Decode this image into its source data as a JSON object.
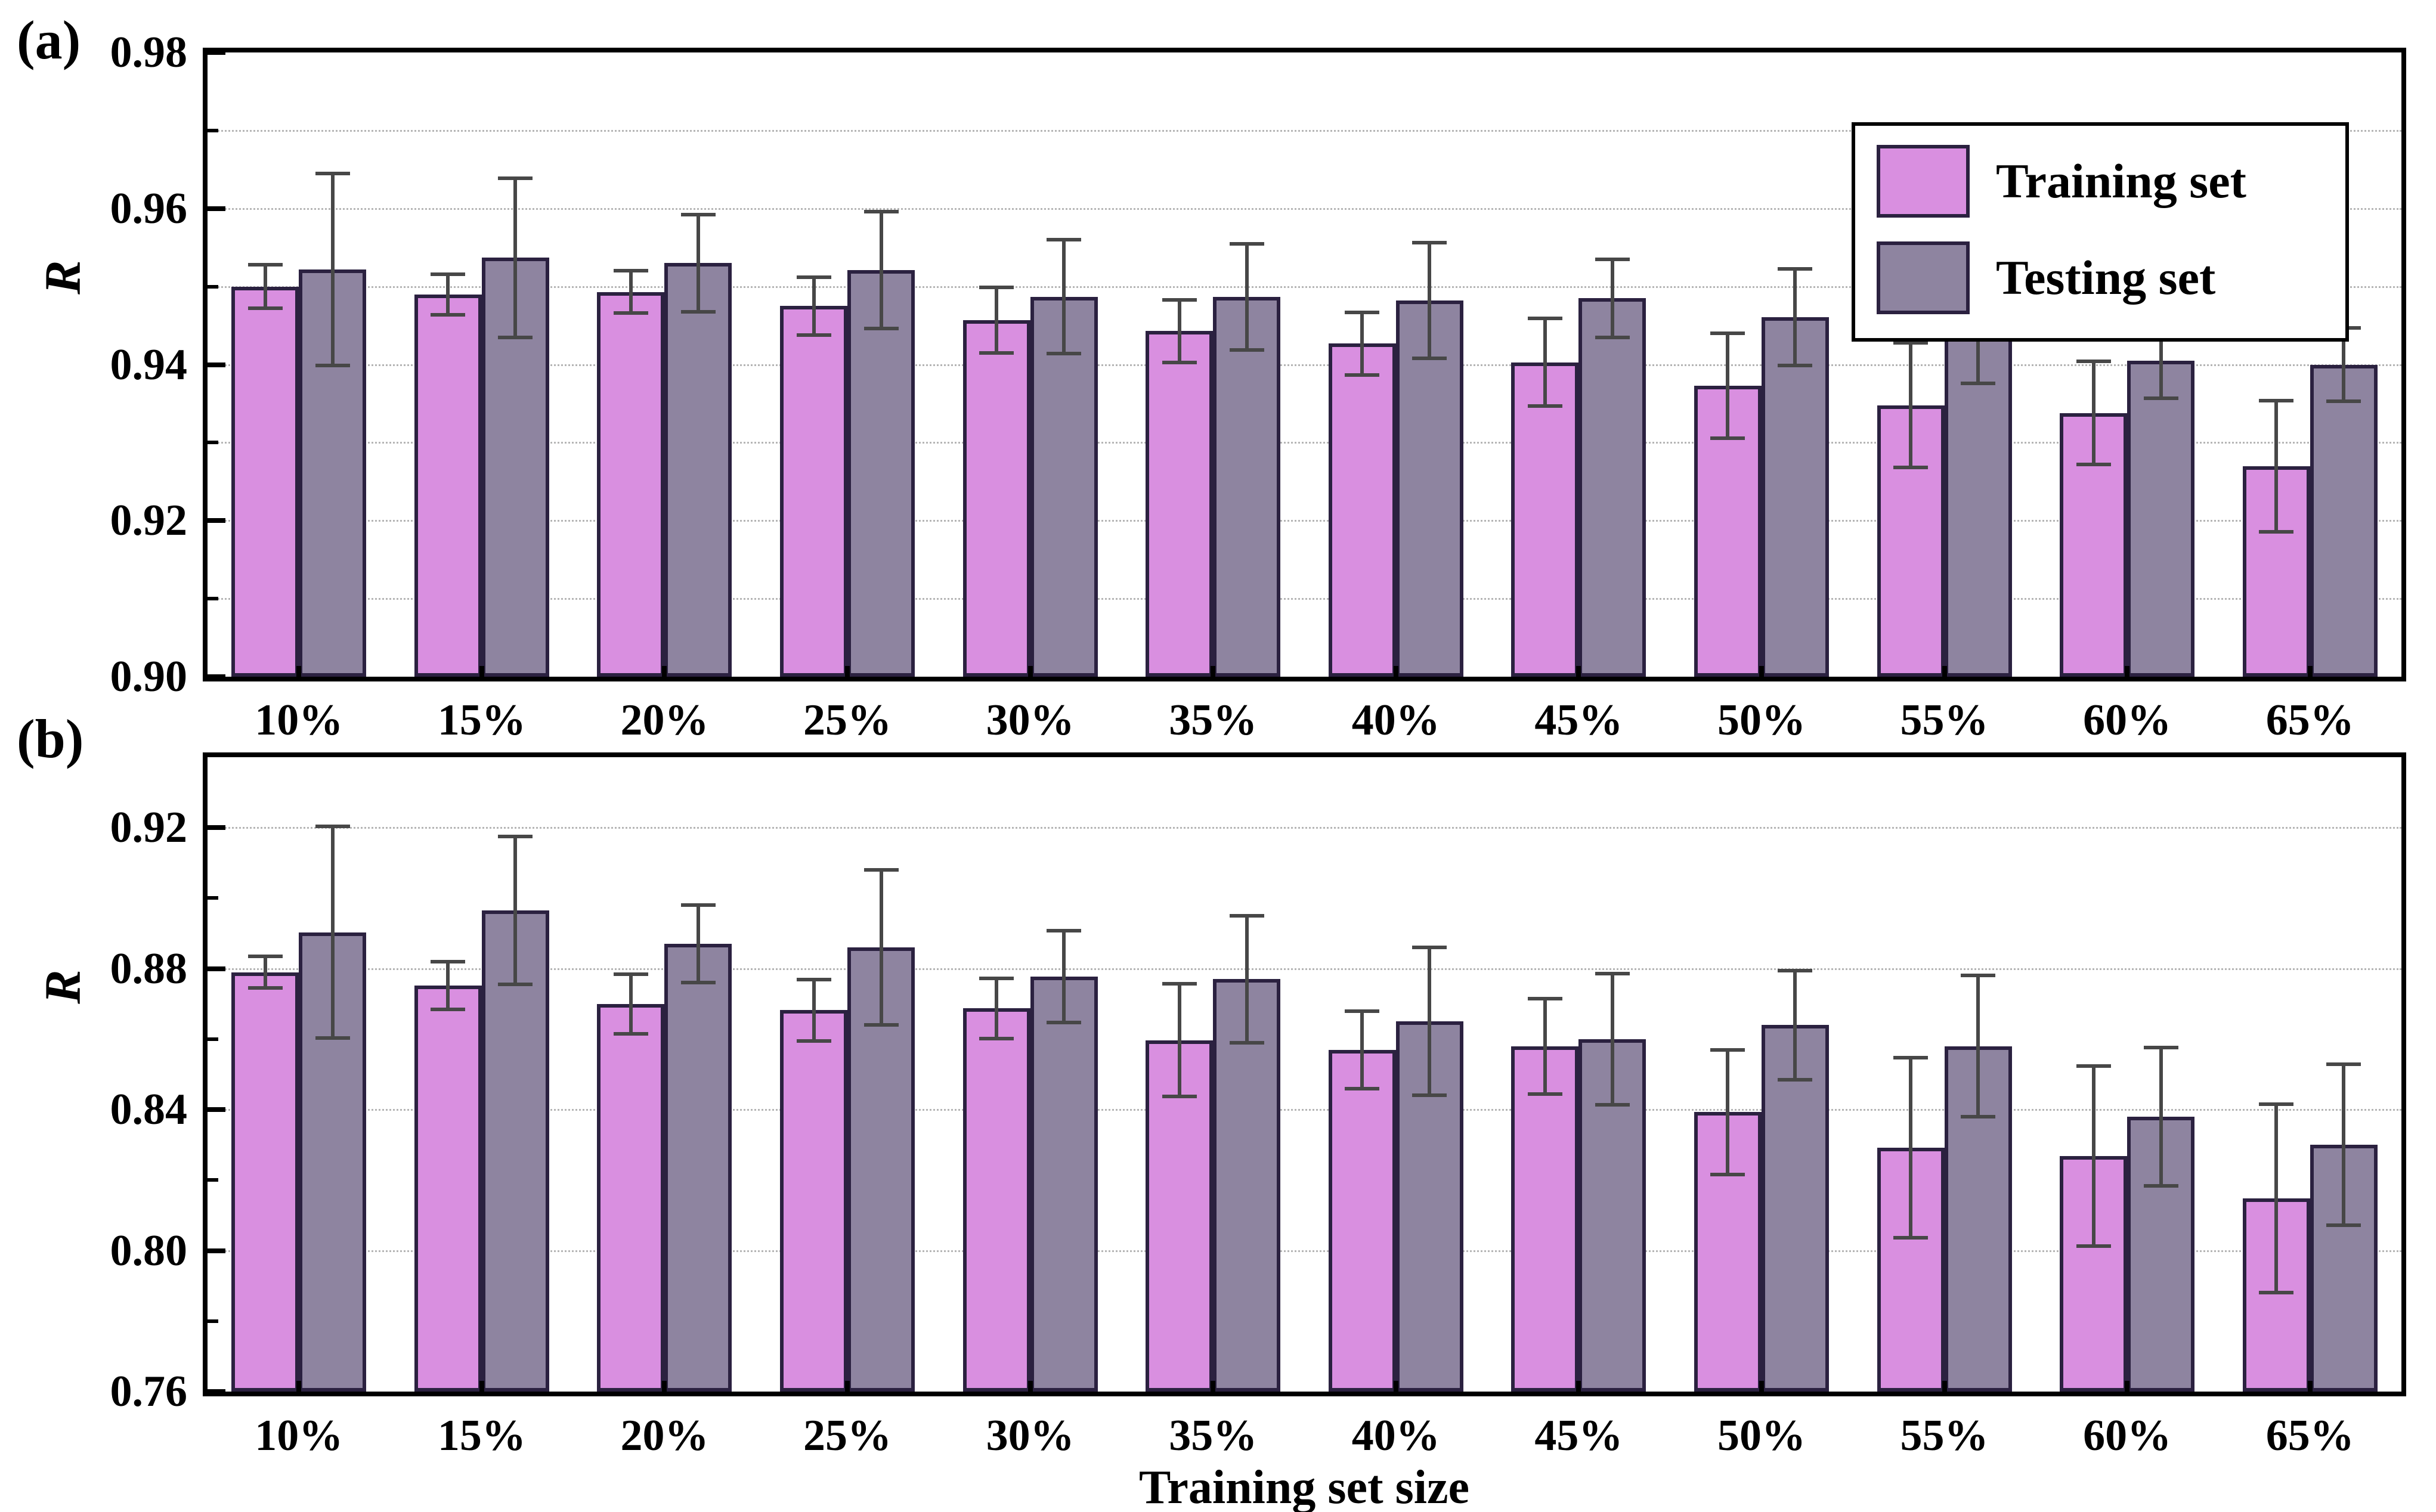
{
  "figure": {
    "xlabel": "Training set size",
    "background": "#ffffff"
  },
  "categories": [
    "10%",
    "15%",
    "20%",
    "25%",
    "30%",
    "35%",
    "40%",
    "45%",
    "50%",
    "55%",
    "60%",
    "65%"
  ],
  "style": {
    "training_color": "#d98fe0",
    "testing_color": "#8e84a0",
    "bar_border": "#2b2140",
    "error_color": "#474747",
    "grid_color": "#b5b5b5",
    "axis_color": "#000000"
  },
  "chart_data": [
    {
      "id": "a",
      "panel_label": "(a)",
      "type": "bar",
      "title": "",
      "ylabel": "R",
      "ylim": [
        0.9,
        0.98
      ],
      "grid": true,
      "legend_position": "top-right",
      "yticks": [
        {
          "v": 0.98,
          "label": "0.98"
        },
        {
          "v": 0.96,
          "label": "0.96"
        },
        {
          "v": 0.94,
          "label": "0.94"
        },
        {
          "v": 0.92,
          "label": "0.92"
        },
        {
          "v": 0.9,
          "label": "0.90"
        }
      ],
      "yticks_minor": [
        0.91,
        0.93,
        0.95,
        0.97
      ],
      "gridlines": [
        0.91,
        0.92,
        0.93,
        0.94,
        0.95,
        0.96,
        0.97
      ],
      "series": [
        {
          "name": "Training set",
          "color": "#d98fe0",
          "values": [
            0.95,
            0.949,
            0.9493,
            0.9475,
            0.9457,
            0.9443,
            0.9427,
            0.9403,
            0.9373,
            0.9348,
            0.9338,
            0.927
          ],
          "errors": [
            0.0028,
            0.0026,
            0.0027,
            0.0037,
            0.0042,
            0.004,
            0.004,
            0.0056,
            0.0067,
            0.008,
            0.0066,
            0.0084
          ]
        },
        {
          "name": "Testing set",
          "color": "#8e84a0",
          "values": [
            0.9522,
            0.9537,
            0.953,
            0.9521,
            0.9487,
            0.9487,
            0.9482,
            0.9485,
            0.9461,
            0.9446,
            0.9405,
            0.94
          ],
          "errors": [
            0.0123,
            0.0102,
            0.0062,
            0.0075,
            0.0073,
            0.0068,
            0.0074,
            0.005,
            0.0062,
            0.007,
            0.0048,
            0.0047
          ]
        }
      ]
    },
    {
      "id": "b",
      "panel_label": "(b)",
      "type": "bar",
      "title": "",
      "ylabel": "R",
      "ylim": [
        0.76,
        0.94
      ],
      "grid": true,
      "legend_position": "none",
      "yticks": [
        {
          "v": 0.92,
          "label": "0.92"
        },
        {
          "v": 0.88,
          "label": "0.88"
        },
        {
          "v": 0.84,
          "label": "0.84"
        },
        {
          "v": 0.8,
          "label": "0.80"
        },
        {
          "v": 0.76,
          "label": "0.76"
        }
      ],
      "yticks_minor": [
        0.78,
        0.82,
        0.86,
        0.9
      ],
      "gridlines": [
        0.8,
        0.84,
        0.88,
        0.92
      ],
      "series": [
        {
          "name": "Training set",
          "color": "#d98fe0",
          "values": [
            0.879,
            0.8752,
            0.87,
            0.8682,
            0.8687,
            0.8597,
            0.857,
            0.858,
            0.8393,
            0.8292,
            0.8268,
            0.8148
          ],
          "errors": [
            0.0045,
            0.0068,
            0.0085,
            0.0087,
            0.0085,
            0.016,
            0.011,
            0.0135,
            0.0177,
            0.0255,
            0.0256,
            0.0267
          ]
        },
        {
          "name": "Testing set",
          "color": "#8e84a0",
          "values": [
            0.8903,
            0.8965,
            0.887,
            0.886,
            0.8778,
            0.877,
            0.865,
            0.86,
            0.864,
            0.858,
            0.838,
            0.83
          ],
          "errors": [
            0.03,
            0.021,
            0.011,
            0.022,
            0.013,
            0.018,
            0.021,
            0.0186,
            0.0155,
            0.02,
            0.0196,
            0.0228
          ]
        }
      ]
    }
  ]
}
